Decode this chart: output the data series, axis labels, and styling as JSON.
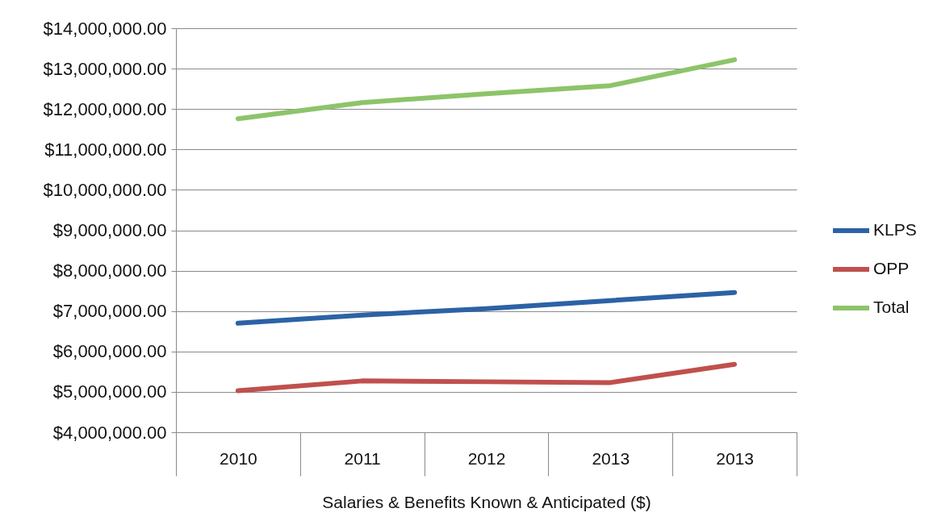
{
  "chart_data": {
    "type": "line",
    "categories": [
      "2010",
      "2011",
      "2012",
      "2013",
      "2013"
    ],
    "xlabel": "Salaries & Benefits Known & Anticipated ($)",
    "series": [
      {
        "name": "KLPS",
        "color": "#2c62a6",
        "values": [
          6700000,
          6900000,
          7060000,
          7260000,
          7460000
        ]
      },
      {
        "name": "OPP",
        "color": "#c0504d",
        "values": [
          5030000,
          5270000,
          5250000,
          5230000,
          5680000
        ]
      },
      {
        "name": "Total",
        "color": "#8dc46a",
        "values": [
          11760000,
          12160000,
          12380000,
          12580000,
          13220000
        ]
      }
    ],
    "ylim": [
      4000000,
      14000000
    ],
    "yticks": [
      {
        "value": 4000000,
        "label": "$4,000,000.00"
      },
      {
        "value": 5000000,
        "label": "$5,000,000.00"
      },
      {
        "value": 6000000,
        "label": "$6,000,000.00"
      },
      {
        "value": 7000000,
        "label": "$7,000,000.00"
      },
      {
        "value": 8000000,
        "label": "$8,000,000.00"
      },
      {
        "value": 9000000,
        "label": "$9,000,000.00"
      },
      {
        "value": 10000000,
        "label": "$10,000,000.00"
      },
      {
        "value": 11000000,
        "label": "$11,000,000.00"
      },
      {
        "value": 12000000,
        "label": "$12,000,000.00"
      },
      {
        "value": 13000000,
        "label": "$13,000,000.00"
      },
      {
        "value": 14000000,
        "label": "$14,000,000.00"
      }
    ],
    "grid": "y",
    "legend": "right",
    "line_style": "solid"
  }
}
